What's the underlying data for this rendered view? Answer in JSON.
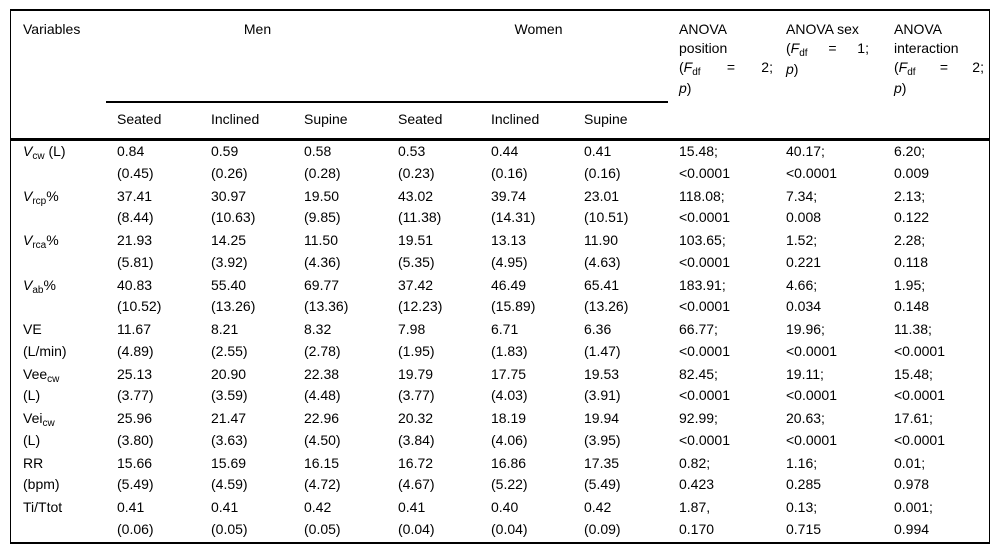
{
  "colors": {
    "text": "#000000",
    "rule": "#000000",
    "background": "#ffffff"
  },
  "table": {
    "corner_label": "Variables",
    "groups": [
      {
        "label": "Men"
      },
      {
        "label": "Women"
      }
    ],
    "sub_columns": [
      "Seated",
      "Inclined",
      "Supine",
      "Seated",
      "Inclined",
      "Supine"
    ],
    "anova_headers": [
      {
        "name": "anova-position",
        "lines": [
          "ANOVA",
          "position"
        ],
        "f_open": "(",
        "f": "F",
        "f_sub": "df",
        "eq": "=",
        "val": "2;",
        "p": "p",
        "close": ")"
      },
      {
        "name": "anova-sex",
        "lines": [
          "ANOVA sex"
        ],
        "f_open": "(",
        "f": "F",
        "f_sub": "df",
        "eq": "=",
        "val": "1;",
        "p": "p",
        "close": ")"
      },
      {
        "name": "anova-interaction",
        "lines": [
          "ANOVA",
          "interaction"
        ],
        "f_open": "(",
        "f": "F",
        "f_sub": "df",
        "eq": "=",
        "val": "2;",
        "p": "p",
        "close": ")"
      }
    ],
    "rows": [
      {
        "label_line1": [
          {
            "t": "V",
            "i": true
          },
          {
            "t": "cw",
            "s": true
          },
          {
            "t": " (L)"
          }
        ],
        "label_line2": "",
        "values": [
          [
            "0.84",
            "(0.45)"
          ],
          [
            "0.59",
            "(0.26)"
          ],
          [
            "0.58",
            "(0.28)"
          ],
          [
            "0.53",
            "(0.23)"
          ],
          [
            "0.44",
            "(0.16)"
          ],
          [
            "0.41",
            "(0.16)"
          ],
          [
            "15.48;",
            "<0.0001"
          ],
          [
            "40.17;",
            "<0.0001"
          ],
          [
            "6.20;",
            "0.009"
          ]
        ]
      },
      {
        "label_line1": [
          {
            "t": "V",
            "i": true
          },
          {
            "t": "rcp",
            "s": true
          },
          {
            "t": "%"
          }
        ],
        "label_line2": "",
        "values": [
          [
            "37.41",
            "(8.44)"
          ],
          [
            "30.97",
            "(10.63)"
          ],
          [
            "19.50",
            "(9.85)"
          ],
          [
            "43.02",
            "(11.38)"
          ],
          [
            "39.74",
            "(14.31)"
          ],
          [
            "23.01",
            "(10.51)"
          ],
          [
            "118.08;",
            "<0.0001"
          ],
          [
            "7.34;",
            "0.008"
          ],
          [
            "2.13;",
            "0.122"
          ]
        ]
      },
      {
        "label_line1": [
          {
            "t": "V",
            "i": true
          },
          {
            "t": "rca",
            "s": true
          },
          {
            "t": "%"
          }
        ],
        "label_line2": "",
        "values": [
          [
            "21.93",
            "(5.81)"
          ],
          [
            "14.25",
            "(3.92)"
          ],
          [
            "11.50",
            "(4.36)"
          ],
          [
            "19.51",
            "(5.35)"
          ],
          [
            "13.13",
            "(4.95)"
          ],
          [
            "11.90",
            "(4.63)"
          ],
          [
            "103.65;",
            "<0.0001"
          ],
          [
            "1.52;",
            "0.221"
          ],
          [
            "2.28;",
            "0.118"
          ]
        ]
      },
      {
        "label_line1": [
          {
            "t": "V",
            "i": true
          },
          {
            "t": "ab",
            "s": true
          },
          {
            "t": "%"
          }
        ],
        "label_line2": "",
        "values": [
          [
            "40.83",
            "(10.52)"
          ],
          [
            "55.40",
            "(13.26)"
          ],
          [
            "69.77",
            "(13.36)"
          ],
          [
            "37.42",
            "(12.23)"
          ],
          [
            "46.49",
            "(15.89)"
          ],
          [
            "65.41",
            "(13.26)"
          ],
          [
            "183.91;",
            "<0.0001"
          ],
          [
            "4.66;",
            "0.034"
          ],
          [
            "1.95;",
            "0.148"
          ]
        ]
      },
      {
        "label_line1": [
          {
            "t": "VE"
          }
        ],
        "label_line2": "(L/min)",
        "values": [
          [
            "11.67",
            "(4.89)"
          ],
          [
            "8.21",
            "(2.55)"
          ],
          [
            "8.32",
            "(2.78)"
          ],
          [
            "7.98",
            "(1.95)"
          ],
          [
            "6.71",
            "(1.83)"
          ],
          [
            "6.36",
            "(1.47)"
          ],
          [
            "66.77;",
            "<0.0001"
          ],
          [
            "19.96;",
            "<0.0001"
          ],
          [
            "11.38;",
            "<0.0001"
          ]
        ]
      },
      {
        "label_line1": [
          {
            "t": "Vee"
          },
          {
            "t": "cw",
            "s": true
          }
        ],
        "label_line2": "(L)",
        "values": [
          [
            "25.13",
            "(3.77)"
          ],
          [
            "20.90",
            "(3.59)"
          ],
          [
            "22.38",
            "(4.48)"
          ],
          [
            "19.79",
            "(3.77)"
          ],
          [
            "17.75",
            "(4.03)"
          ],
          [
            "19.53",
            "(3.91)"
          ],
          [
            "82.45;",
            "<0.0001"
          ],
          [
            "19.11;",
            "<0.0001"
          ],
          [
            "15.48;",
            "<0.0001"
          ]
        ]
      },
      {
        "label_line1": [
          {
            "t": "Vei"
          },
          {
            "t": "cw",
            "s": true
          }
        ],
        "label_line2": "(L)",
        "values": [
          [
            "25.96",
            "(3.80)"
          ],
          [
            "21.47",
            "(3.63)"
          ],
          [
            "22.96",
            "(4.50)"
          ],
          [
            "20.32",
            "(3.84)"
          ],
          [
            "18.19",
            "(4.06)"
          ],
          [
            "19.94",
            "(3.95)"
          ],
          [
            "92.99;",
            "<0.0001"
          ],
          [
            "20.63;",
            "<0.0001"
          ],
          [
            "17.61;",
            "<0.0001"
          ]
        ]
      },
      {
        "label_line1": [
          {
            "t": "RR"
          }
        ],
        "label_line2": "(bpm)",
        "values": [
          [
            "15.66",
            "(5.49)"
          ],
          [
            "15.69",
            "(4.59)"
          ],
          [
            "16.15",
            "(4.72)"
          ],
          [
            "16.72",
            "(4.67)"
          ],
          [
            "16.86",
            "(5.22)"
          ],
          [
            "17.35",
            "(5.49)"
          ],
          [
            "0.82;",
            "0.423"
          ],
          [
            "1.16;",
            "0.285"
          ],
          [
            "0.01;",
            "0.978"
          ]
        ]
      },
      {
        "label_line1": [
          {
            "t": "Ti/Ttot"
          }
        ],
        "label_line2": "",
        "values": [
          [
            "0.41",
            "(0.06)"
          ],
          [
            "0.41",
            "(0.05)"
          ],
          [
            "0.42",
            "(0.05)"
          ],
          [
            "0.41",
            "(0.04)"
          ],
          [
            "0.40",
            "(0.04)"
          ],
          [
            "0.42",
            "(0.09)"
          ],
          [
            "1.87,",
            "0.170"
          ],
          [
            "0.13;",
            "0.715"
          ],
          [
            "0.001;",
            "0.994"
          ]
        ]
      }
    ]
  }
}
